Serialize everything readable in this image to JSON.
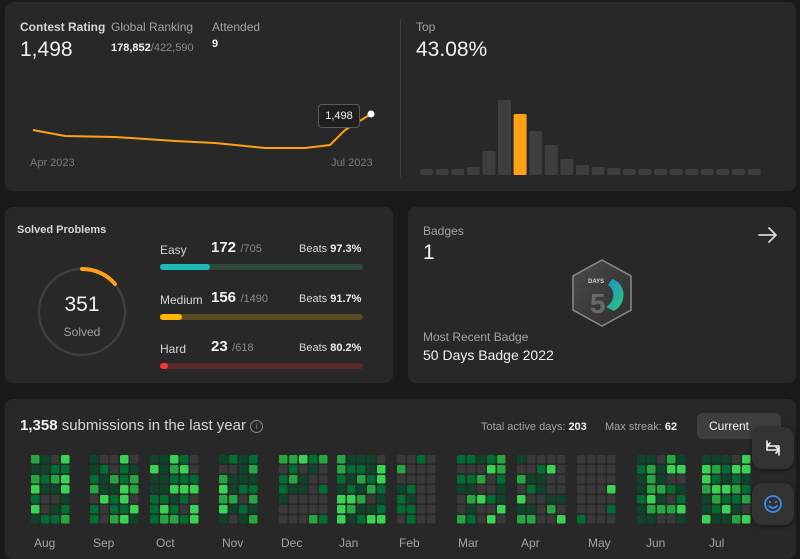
{
  "contest": {
    "rating_label": "Contest Rating",
    "rating_value": "1,498",
    "global_label": "Global Ranking",
    "global_rank": "178,852",
    "global_total": "/422,590",
    "attended_label": "Attended",
    "attended_value": "9",
    "top_label": "Top",
    "top_value": "43.08%",
    "axis_start": "Apr 2023",
    "axis_end": "Jul 2023",
    "tooltip": "1,498",
    "line_color": "#ffa116",
    "highlight_bar_index": 6
  },
  "solved": {
    "title": "Solved Problems",
    "total": "351",
    "total_label": "Solved",
    "ring_progress": 0.1,
    "easy": {
      "label": "Easy",
      "count": "172",
      "total": "/705",
      "beats_label": "Beats",
      "beats": "97.3%",
      "progress": 0.244,
      "color": "#1cbaba",
      "track": "#2e4a38"
    },
    "medium": {
      "label": "Medium",
      "count": "156",
      "total": "/1490",
      "beats_label": "Beats",
      "beats": "91.7%",
      "progress": 0.105,
      "color": "#ffb700",
      "track": "#5a4a1f"
    },
    "hard": {
      "label": "Hard",
      "count": "23",
      "total": "/618",
      "beats_label": "Beats",
      "beats": "80.2%",
      "progress": 0.037,
      "color": "#f63737",
      "track": "#5a2a2a"
    }
  },
  "badges": {
    "title": "Badges",
    "count": "1",
    "recent_label": "Most Recent Badge",
    "recent_name": "50 Days Badge 2022",
    "badge_text": "DAYS",
    "arrow_icon": "arrow-right-icon"
  },
  "submissions": {
    "count": "1,358",
    "label": "submissions in the last year",
    "active_label": "Total active days:",
    "active_value": "203",
    "streak_label": "Max streak:",
    "streak_value": "62",
    "current_button": "Current",
    "months": [
      "Aug",
      "Sep",
      "Oct",
      "Nov",
      "Dec",
      "Jan",
      "Feb",
      "Mar",
      "Apr",
      "May",
      "Jun",
      "Jul"
    ]
  }
}
